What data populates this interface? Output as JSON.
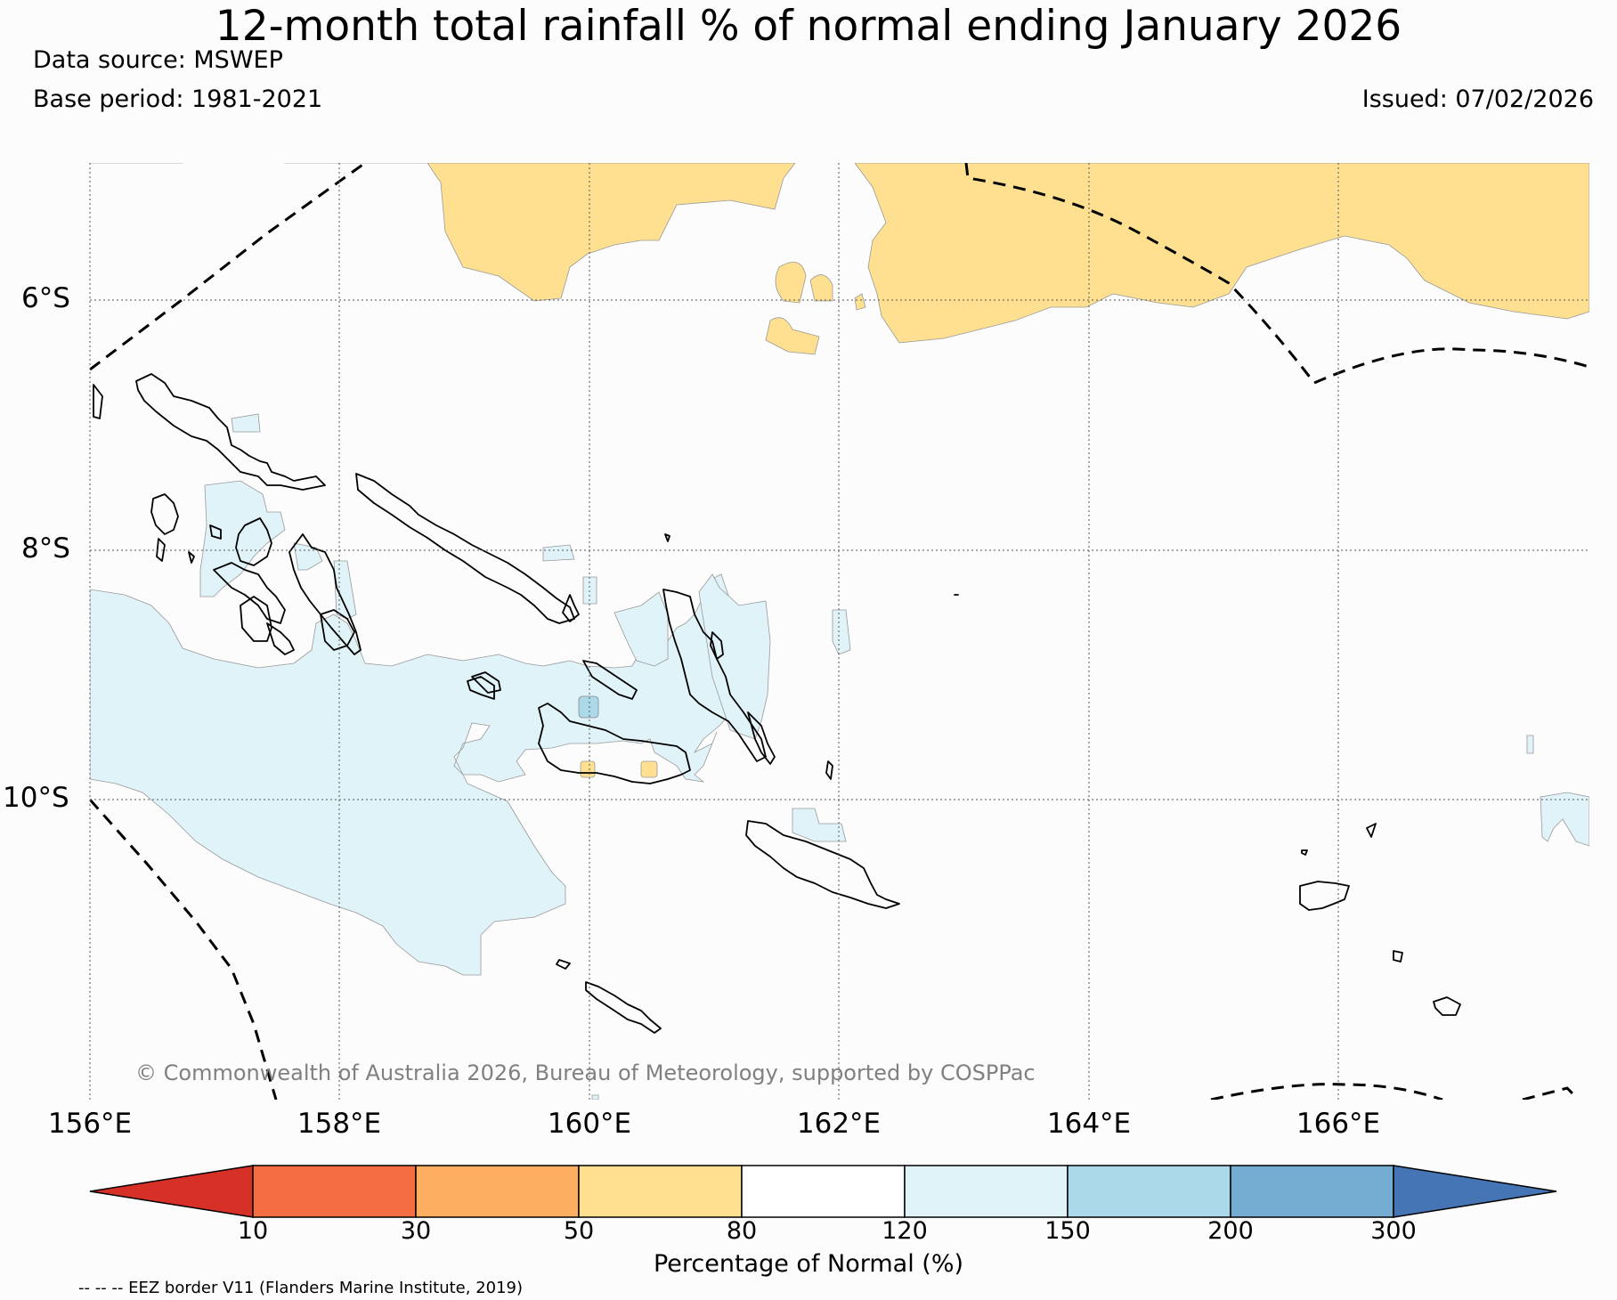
{
  "header": {
    "title": "12-month total rainfall % of normal ending January 2026",
    "data_source": "Data source: MSWEP",
    "base_period": "Base period: 1981-2021",
    "issued": "Issued: 07/02/2026"
  },
  "map": {
    "latitude_labels": [
      "6°S",
      "8°S",
      "10°S"
    ],
    "longitude_labels": [
      "156°E",
      "158°E",
      "160°E",
      "162°E",
      "164°E",
      "166°E"
    ],
    "copyright": "© Commonwealth of Australia 2026, Bureau of Meteorology, supported by COSPPac"
  },
  "colorbar": {
    "label": "Percentage of Normal (%)",
    "ticks": [
      "10",
      "30",
      "50",
      "80",
      "120",
      "150",
      "200",
      "300"
    ],
    "colors": [
      "#d73027",
      "#f46d43",
      "#fdae61",
      "#fee090",
      "#ffffff",
      "#e0f3f8",
      "#abd9e9",
      "#74add1",
      "#4575b4"
    ]
  },
  "footnote": "-- -- -- EEZ border V11 (Flanders Marine Institute, 2019)"
}
